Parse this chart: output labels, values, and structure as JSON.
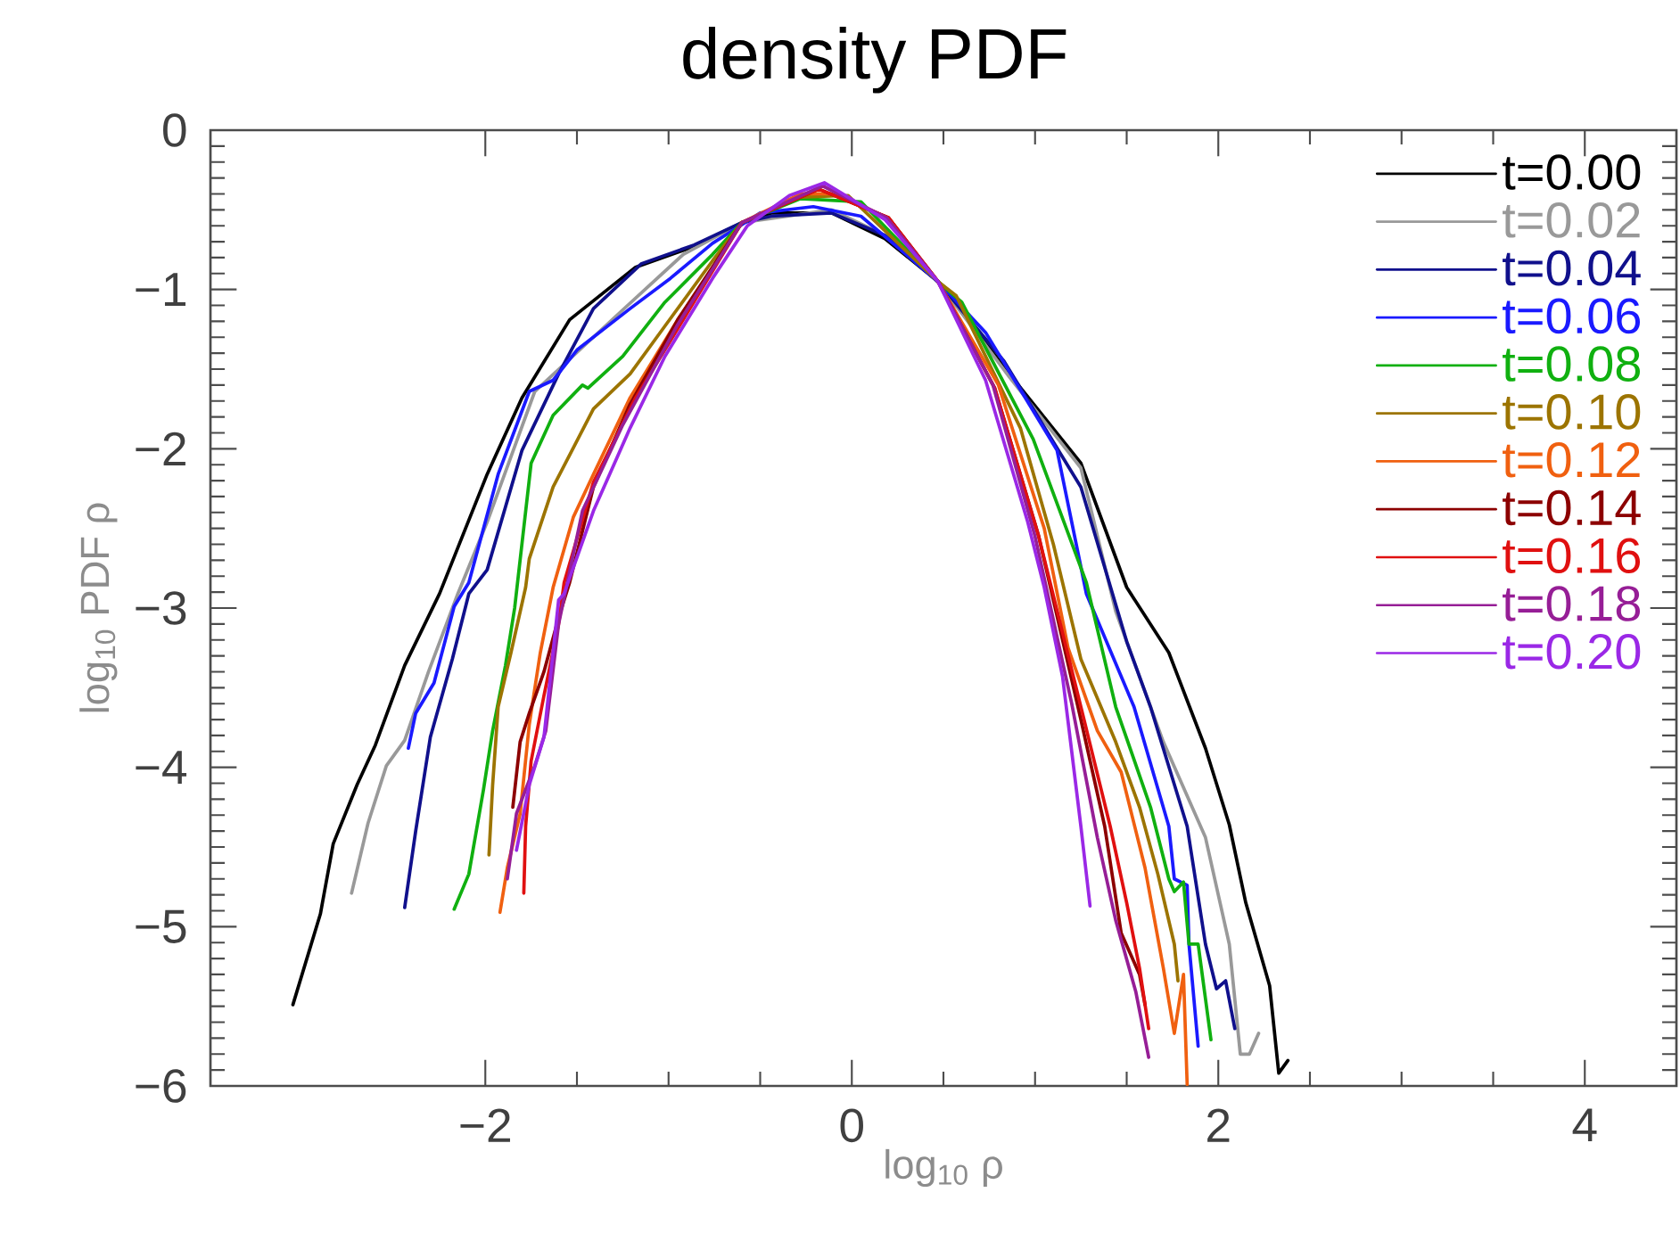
{
  "chart_data": {
    "type": "line",
    "title": "density PDF",
    "xlabel": "log$_{10}$ ρ",
    "ylabel": "log$_{10}$ PDF ρ",
    "xlim": [
      -3.5,
      4.5
    ],
    "ylim": [
      -6,
      0
    ],
    "xticks": [
      {
        "value": -2,
        "label": "−2"
      },
      0,
      2,
      4
    ],
    "yticks": [
      0,
      {
        "value": -1,
        "label": "−1"
      },
      {
        "value": -2,
        "label": "−2"
      },
      {
        "value": -3,
        "label": "−3"
      },
      {
        "value": -4,
        "label": "−4"
      },
      {
        "value": -5,
        "label": "−5"
      },
      {
        "value": -6,
        "label": "−6"
      }
    ],
    "legend": "top right",
    "series": [
      {
        "name": "t=0.00",
        "color": "#000000",
        "x": [
          -3.05,
          -2.9,
          -2.83,
          -2.7,
          -2.6,
          -2.44,
          -2.25,
          -1.99,
          -1.8,
          -1.54,
          -1.18,
          -0.86,
          -0.6,
          -0.44,
          -0.11,
          0.18,
          0.47,
          0.86,
          1.25,
          1.5,
          1.73,
          1.93,
          2.06,
          2.15,
          2.28,
          2.33,
          2.38
        ],
        "values": [
          -5.49,
          -4.92,
          -4.48,
          -4.11,
          -3.86,
          -3.36,
          -2.91,
          -2.16,
          -1.68,
          -1.19,
          -0.86,
          -0.73,
          -0.58,
          -0.52,
          -0.52,
          -0.68,
          -0.95,
          -1.53,
          -2.09,
          -2.87,
          -3.28,
          -3.88,
          -4.36,
          -4.85,
          -5.37,
          -5.92,
          -5.84
        ]
      },
      {
        "name": "t=0.02",
        "color": "#999999",
        "x": [
          -2.73,
          -2.64,
          -2.54,
          -2.44,
          -2.31,
          -2.15,
          -1.99,
          -1.73,
          -1.28,
          -0.92,
          -0.6,
          -0.11,
          0.18,
          0.47,
          0.86,
          1.25,
          1.44,
          1.7,
          1.93,
          2.06,
          2.12,
          2.17,
          2.22
        ],
        "values": [
          -4.79,
          -4.35,
          -3.99,
          -3.83,
          -3.4,
          -2.91,
          -2.46,
          -1.64,
          -1.16,
          -0.78,
          -0.58,
          -0.5,
          -0.66,
          -0.95,
          -1.55,
          -2.12,
          -3.02,
          -3.84,
          -4.44,
          -5.11,
          -5.8,
          -5.8,
          -5.67
        ]
      },
      {
        "name": "t=0.04",
        "color": "#10108c",
        "x": [
          -2.44,
          -2.38,
          -2.3,
          -2.18,
          -2.09,
          -1.99,
          -1.8,
          -1.6,
          -1.41,
          -1.15,
          -0.86,
          -0.6,
          -0.44,
          -0.11,
          0.18,
          0.47,
          0.83,
          1.25,
          1.5,
          1.63,
          1.83,
          1.93,
          1.99,
          2.04,
          2.09
        ],
        "values": [
          -4.88,
          -4.4,
          -3.81,
          -3.32,
          -2.91,
          -2.76,
          -2.01,
          -1.53,
          -1.12,
          -0.84,
          -0.72,
          -0.58,
          -0.54,
          -0.52,
          -0.66,
          -0.95,
          -1.45,
          -2.24,
          -3.21,
          -3.62,
          -4.37,
          -5.11,
          -5.39,
          -5.34,
          -5.64
        ]
      },
      {
        "name": "t=0.06",
        "color": "#1a1aff",
        "x": [
          -2.42,
          -2.38,
          -2.28,
          -2.17,
          -2.09,
          -1.93,
          -1.76,
          -1.63,
          -1.5,
          -1.21,
          -0.99,
          -0.76,
          -0.5,
          -0.21,
          0.05,
          0.47,
          0.73,
          1.12,
          1.28,
          1.54,
          1.73,
          1.76,
          1.83,
          1.84,
          1.89
        ],
        "values": [
          -3.88,
          -3.66,
          -3.47,
          -2.99,
          -2.84,
          -2.16,
          -1.64,
          -1.57,
          -1.38,
          -1.12,
          -0.93,
          -0.71,
          -0.52,
          -0.48,
          -0.54,
          -0.95,
          -1.27,
          -2.01,
          -2.91,
          -3.62,
          -4.37,
          -4.7,
          -4.74,
          -5.11,
          -5.75
        ]
      },
      {
        "name": "t=0.08",
        "color": "#10b010",
        "x": [
          -2.17,
          -2.09,
          -2.01,
          -1.96,
          -1.89,
          -1.84,
          -1.75,
          -1.63,
          -1.47,
          -1.44,
          -1.25,
          -1.02,
          -0.76,
          -0.6,
          -0.28,
          0.05,
          0.47,
          0.6,
          0.99,
          1.28,
          1.44,
          1.63,
          1.73,
          1.76,
          1.81,
          1.84,
          1.89,
          1.96
        ],
        "values": [
          -4.89,
          -4.67,
          -4.14,
          -3.77,
          -3.36,
          -3.0,
          -2.09,
          -1.79,
          -1.6,
          -1.62,
          -1.42,
          -1.08,
          -0.78,
          -0.58,
          -0.43,
          -0.45,
          -0.95,
          -1.08,
          -1.94,
          -2.84,
          -3.62,
          -4.25,
          -4.7,
          -4.78,
          -4.72,
          -5.11,
          -5.11,
          -5.71
        ]
      },
      {
        "name": "t=0.10",
        "color": "#9c7400",
        "x": [
          -1.98,
          -1.96,
          -1.93,
          -1.86,
          -1.78,
          -1.76,
          -1.63,
          -1.41,
          -1.21,
          -1.02,
          -0.76,
          -0.6,
          -0.28,
          -0.02,
          0.47,
          0.57,
          0.92,
          1.1,
          1.25,
          1.44,
          1.57,
          1.67,
          1.76,
          1.78
        ],
        "values": [
          -4.55,
          -4.11,
          -3.62,
          -3.28,
          -2.87,
          -2.69,
          -2.24,
          -1.75,
          -1.53,
          -1.23,
          -0.82,
          -0.58,
          -0.42,
          -0.41,
          -0.95,
          -1.04,
          -1.87,
          -2.6,
          -3.32,
          -3.84,
          -4.25,
          -4.67,
          -5.11,
          -5.34
        ]
      },
      {
        "name": "t=0.12",
        "color": "#f06010",
        "x": [
          -1.92,
          -1.88,
          -1.81,
          -1.76,
          -1.7,
          -1.63,
          -1.52,
          -1.41,
          -1.21,
          -0.95,
          -0.76,
          -0.6,
          -0.28,
          -0.11,
          0.2,
          0.47,
          0.8,
          1.05,
          1.18,
          1.34,
          1.47,
          1.6,
          1.7,
          1.76,
          1.81,
          1.83
        ],
        "values": [
          -4.91,
          -4.63,
          -4.29,
          -3.73,
          -3.28,
          -2.87,
          -2.43,
          -2.16,
          -1.68,
          -1.19,
          -0.87,
          -0.58,
          -0.4,
          -0.4,
          -0.55,
          -0.95,
          -1.6,
          -2.5,
          -3.25,
          -3.77,
          -4.03,
          -4.63,
          -5.26,
          -5.67,
          -5.3,
          -5.99
        ]
      },
      {
        "name": "t=0.14",
        "color": "#8c0000",
        "x": [
          -1.85,
          -1.81,
          -1.76,
          -1.68,
          -1.6,
          -1.54,
          -1.41,
          -1.21,
          -0.95,
          -0.6,
          -0.18,
          0.2,
          0.47,
          0.78,
          1.02,
          1.25,
          1.38,
          1.47,
          1.57,
          1.6
        ],
        "values": [
          -4.25,
          -3.84,
          -3.66,
          -3.4,
          -3.06,
          -2.84,
          -2.24,
          -1.72,
          -1.19,
          -0.58,
          -0.37,
          -0.55,
          -0.95,
          -1.62,
          -2.55,
          -3.7,
          -4.37,
          -5.04,
          -5.3,
          -5.49
        ]
      },
      {
        "name": "t=0.16",
        "color": "#e01010",
        "x": [
          -1.79,
          -1.78,
          -1.75,
          -1.68,
          -1.6,
          -1.57,
          -1.41,
          -1.18,
          -0.92,
          -0.6,
          -0.18,
          0.2,
          0.47,
          0.78,
          1.02,
          1.25,
          1.41,
          1.5,
          1.57,
          1.62
        ],
        "values": [
          -4.79,
          -4.37,
          -3.96,
          -3.55,
          -3.1,
          -2.84,
          -2.21,
          -1.68,
          -1.19,
          -0.58,
          -0.37,
          -0.55,
          -0.95,
          -1.62,
          -2.55,
          -3.62,
          -4.37,
          -4.85,
          -5.26,
          -5.64
        ]
      },
      {
        "name": "t=0.18",
        "color": "#961e96",
        "x": [
          -1.88,
          -1.83,
          -1.73,
          -1.67,
          -1.6,
          -1.47,
          -1.25,
          -0.95,
          -0.6,
          -0.16,
          0.19,
          0.47,
          0.77,
          1.0,
          1.2,
          1.34,
          1.44,
          1.55,
          1.62
        ],
        "values": [
          -4.7,
          -4.29,
          -3.99,
          -3.77,
          -3.1,
          -2.39,
          -1.85,
          -1.22,
          -0.58,
          -0.35,
          -0.55,
          -0.95,
          -1.6,
          -2.55,
          -3.6,
          -4.44,
          -4.96,
          -5.41,
          -5.82
        ]
      },
      {
        "name": "t=0.20",
        "color": "#9a28e6",
        "x": [
          -1.83,
          -1.76,
          -1.68,
          -1.6,
          -1.57,
          -1.41,
          -1.21,
          -1.02,
          -0.76,
          -0.57,
          -0.34,
          -0.15,
          0.18,
          0.47,
          0.73,
          0.96,
          1.05,
          1.15,
          1.25,
          1.3
        ],
        "values": [
          -4.52,
          -4.11,
          -3.81,
          -2.95,
          -2.91,
          -2.39,
          -1.87,
          -1.42,
          -0.93,
          -0.6,
          -0.41,
          -0.33,
          -0.56,
          -0.95,
          -1.57,
          -2.46,
          -2.87,
          -3.43,
          -4.37,
          -4.87
        ]
      }
    ]
  }
}
